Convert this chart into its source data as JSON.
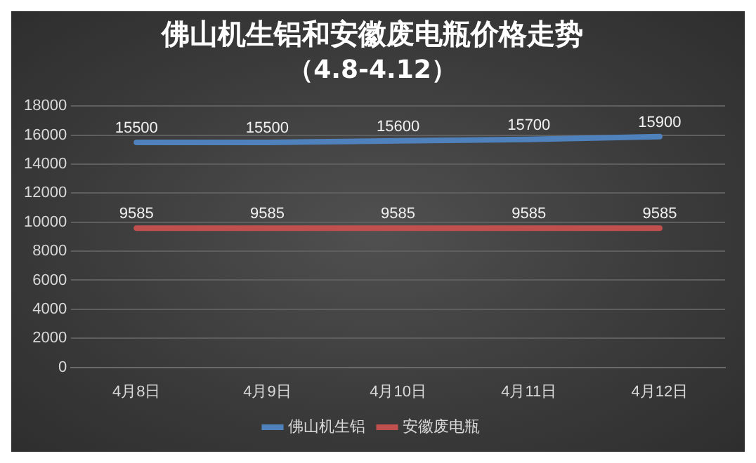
{
  "chart_data": {
    "type": "line",
    "title": "佛山机生铝和安徽废电瓶价格走势",
    "subtitle": "（4.8-4.12）",
    "categories": [
      "4月8日",
      "4月9日",
      "4月10日",
      "4月11日",
      "4月12日"
    ],
    "series": [
      {
        "name": "佛山机生铝",
        "color": "#4f81bd",
        "values": [
          15500,
          15500,
          15600,
          15700,
          15900
        ]
      },
      {
        "name": "安徽废电瓶",
        "color": "#c0504d",
        "values": [
          9585,
          9585,
          9585,
          9585,
          9585
        ]
      }
    ],
    "ylim": [
      0,
      18000
    ],
    "yticks": [
      0,
      2000,
      4000,
      6000,
      8000,
      10000,
      12000,
      14000,
      16000,
      18000
    ],
    "grid": "y",
    "legend": "bottom",
    "marker": "none",
    "line_style": "solid",
    "data_labels": true
  }
}
